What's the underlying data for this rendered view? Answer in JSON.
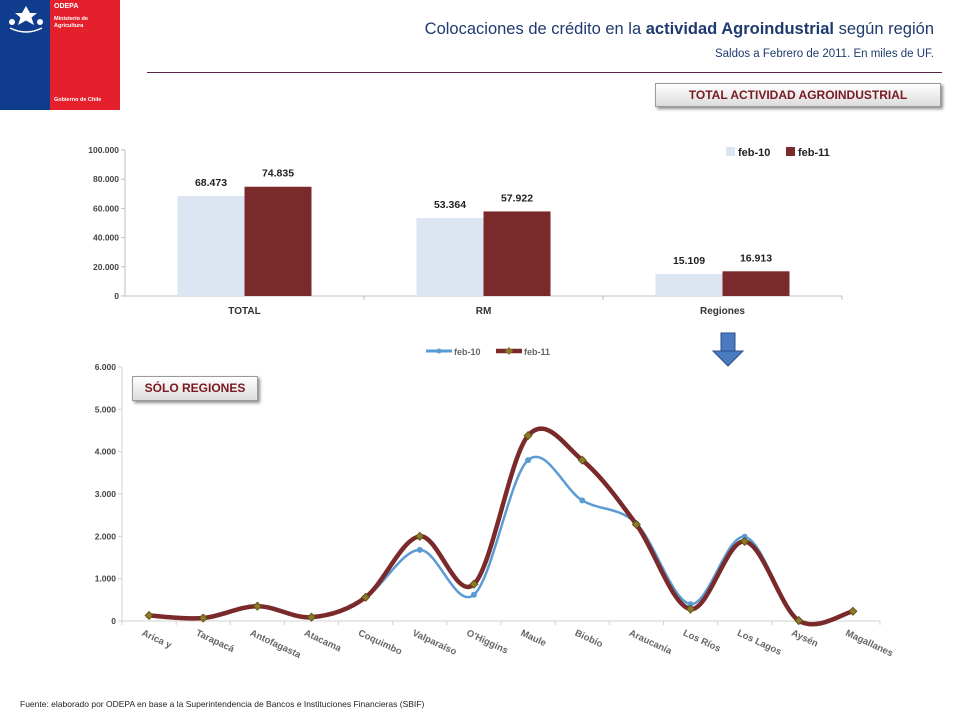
{
  "logo": {
    "org": "ODEPA",
    "ministry": "Ministerio de\nAgricultura",
    "government": "Gobierno de Chile",
    "colors": {
      "blue": "#0f3c8c",
      "red": "#e5202d"
    }
  },
  "header": {
    "title_pre": "Colocaciones de crédito en la ",
    "title_bold": "actividad Agroindustrial",
    "title_post": " según región",
    "subtitle": "Saldos a Febrero de 2011. En miles de UF."
  },
  "banner_total": "TOTAL ACTIVIDAD AGROINDUSTRIAL",
  "banner_regions": "SÓLO REGIONES",
  "footer": "Fuente: elaborado por ODEPA en base a la Superintendencia de Bancos e Instituciones Financieras (SBIF)",
  "arrow_icon": "down-arrow-icon",
  "chart_data": [
    {
      "type": "bar",
      "categories": [
        "TOTAL",
        "RM",
        "Regiones"
      ],
      "series": [
        {
          "name": "feb-10",
          "values": [
            68473,
            53364,
            15109
          ],
          "labels": [
            "68.473",
            "53.364",
            "15.109"
          ],
          "color": "#dce6f2"
        },
        {
          "name": "feb-11",
          "values": [
            74835,
            57922,
            16913
          ],
          "labels": [
            "74.835",
            "57.922",
            "16.913"
          ],
          "color": "#7a2a2a"
        }
      ],
      "yticks": [
        "100.000",
        "80.000",
        "60.000",
        "40.000",
        "20.000",
        "0"
      ],
      "ylim": [
        0,
        100000
      ],
      "legend": "top-right",
      "grid": false
    },
    {
      "type": "line",
      "categories": [
        "Arica y",
        "Tarapacá",
        "Antofagasta",
        "Atacama",
        "Coquimbo",
        "Valparaíso",
        "O'Higgins",
        "Maule",
        "Biobío",
        "Araucanía",
        "Los Ríos",
        "Los Lagos",
        "Aysén",
        "Magallanes"
      ],
      "series": [
        {
          "name": "feb-10",
          "values": [
            130,
            70,
            350,
            90,
            560,
            1680,
            620,
            3800,
            2850,
            2300,
            400,
            1990,
            10,
            230
          ],
          "color": "#5b9bd5"
        },
        {
          "name": "feb-11",
          "values": [
            130,
            70,
            350,
            90,
            560,
            2000,
            870,
            4380,
            3800,
            2280,
            280,
            1880,
            10,
            230
          ],
          "color": "#7a2a2a"
        }
      ],
      "yticks": [
        "6.000",
        "5.000",
        "4.000",
        "3.000",
        "2.000",
        "1.000",
        "0"
      ],
      "ylim": [
        0,
        6000
      ],
      "legend": "top-center",
      "grid": false
    }
  ]
}
